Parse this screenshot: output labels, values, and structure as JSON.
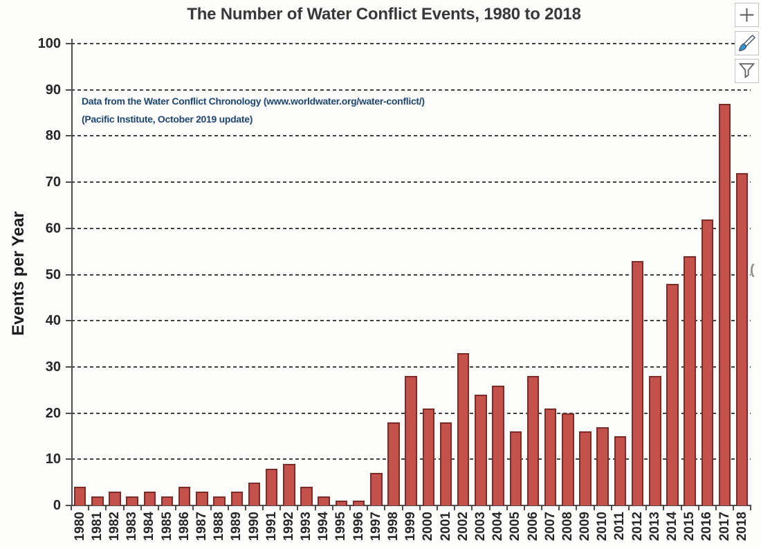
{
  "chart": {
    "title": "The Number of Water Conflict Events, 1980 to 2018",
    "annotation_line1": "Data from the Water Conflict Chronology (www.worldwater.org/water-conflict/)",
    "annotation_line2": "(Pacific Institute, October 2019 update)",
    "y_axis_title": "Events per Year"
  },
  "toolbar": {
    "buttons": [
      {
        "label": "chart-elements",
        "icon": "plus-icon"
      },
      {
        "label": "chart-styles",
        "icon": "paintbrush-icon"
      },
      {
        "label": "chart-filters",
        "icon": "funnel-icon"
      }
    ]
  },
  "colors": {
    "bar_fill": "#c3524d",
    "bar_border": "#7e2b28",
    "gridline": "#3f3f3f",
    "axis": "#4d4d4d",
    "title_text": "#383838",
    "tick_text": "#262626",
    "annotation_text": "#1e4670",
    "brush_tip_blue": "#2e9bd6"
  },
  "artifact_glyph": "(",
  "chart_data": {
    "type": "bar",
    "title": "The Number of Water Conflict Events, 1980 to 2018",
    "xlabel": "",
    "ylabel": "Events per Year",
    "ylim": [
      0,
      100
    ],
    "ytick_step": 10,
    "grid": "horizontal dashed",
    "legend": "none",
    "bar_color": "#c3524d",
    "categories": [
      "1980",
      "1981",
      "1982",
      "1983",
      "1984",
      "1985",
      "1986",
      "1987",
      "1988",
      "1989",
      "1990",
      "1991",
      "1992",
      "1993",
      "1994",
      "1995",
      "1996",
      "1997",
      "1998",
      "1999",
      "2000",
      "2001",
      "2002",
      "2003",
      "2004",
      "2005",
      "2006",
      "2007",
      "2008",
      "2009",
      "2010",
      "2011",
      "2012",
      "2013",
      "2014",
      "2015",
      "2016",
      "2017",
      "2018"
    ],
    "values": [
      4,
      2,
      3,
      2,
      3,
      2,
      4,
      3,
      2,
      3,
      5,
      8,
      9,
      4,
      2,
      1,
      1,
      7,
      18,
      28,
      21,
      18,
      33,
      24,
      26,
      16,
      28,
      21,
      20,
      16,
      17,
      15,
      53,
      28,
      48,
      54,
      62,
      87,
      72
    ],
    "annotation": "Data from the Water Conflict Chronology (www.worldwater.org/water-conflict/) (Pacific Institute, October 2019 update)"
  }
}
